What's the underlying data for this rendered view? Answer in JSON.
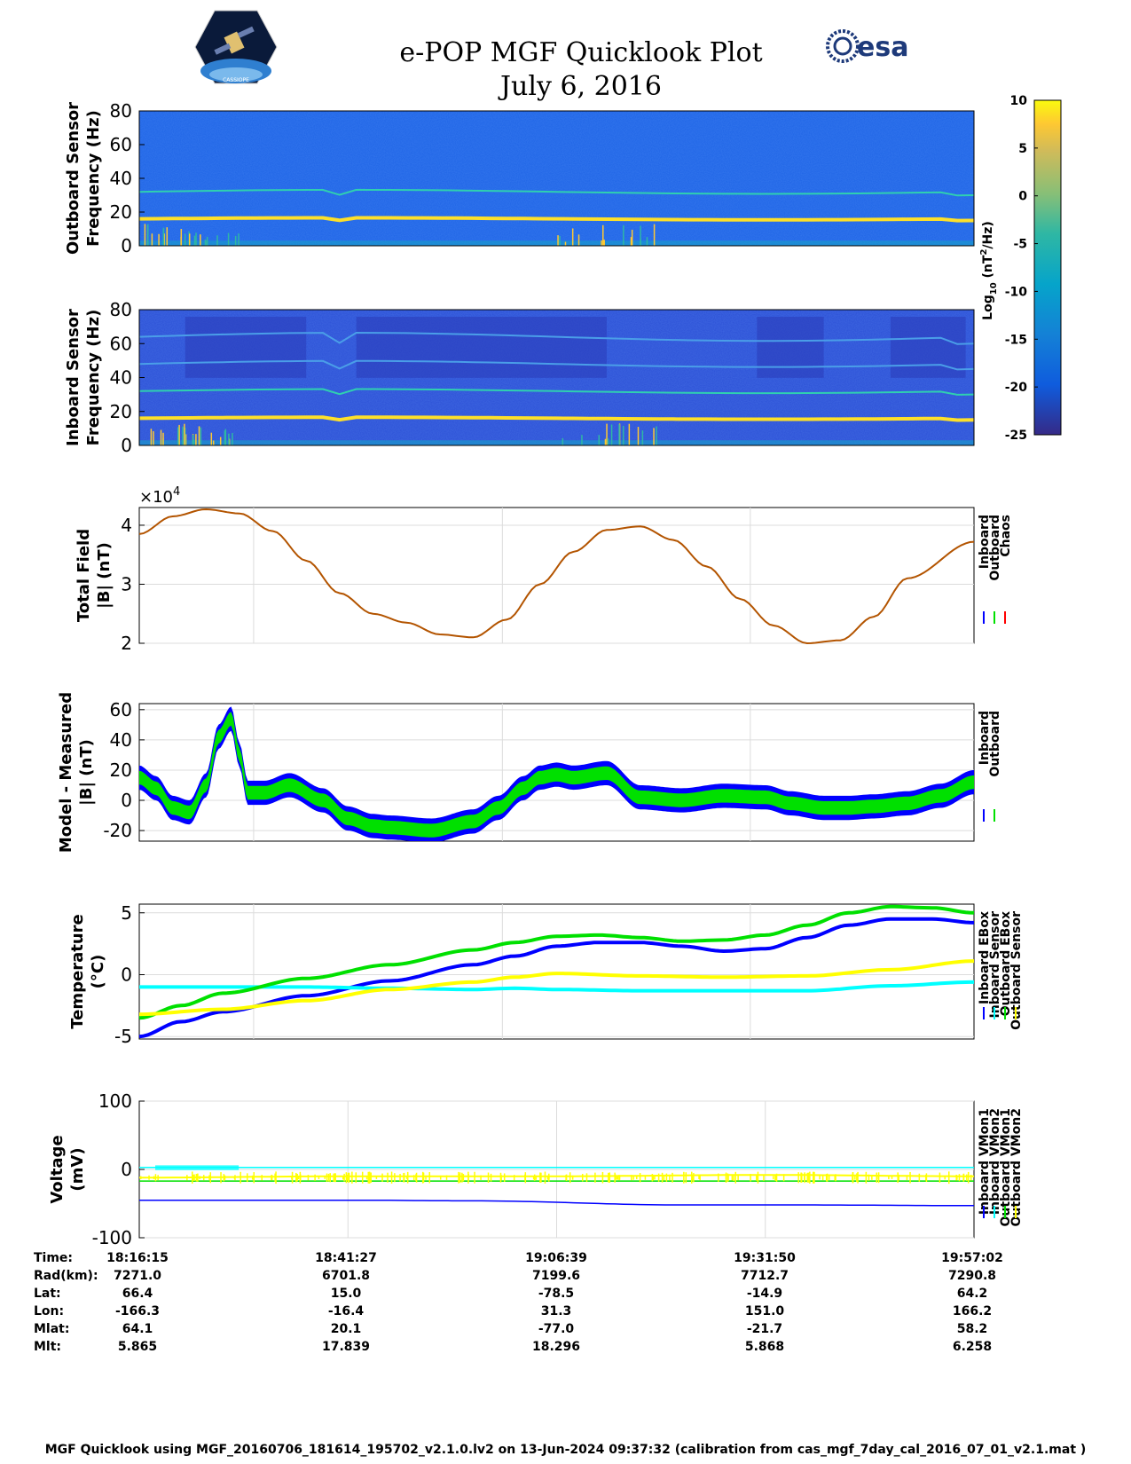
{
  "header": {
    "title": "e-POP MGF Quicklook Plot",
    "date": "July 6, 2016",
    "logo_left": "CASSIOPE",
    "logo_right": "esa"
  },
  "colors": {
    "inboard": "#0000ff",
    "outboard": "#00e000",
    "chaos": "#ff0000",
    "cyan": "#00ffff",
    "yellow": "#ffff00",
    "trace": "#b35400"
  },
  "colorbar": {
    "ticks": [
      "10",
      "5",
      "0",
      "-5",
      "-10",
      "-15",
      "-20",
      "-25"
    ],
    "label_pre": "Log",
    "label_sub": "10",
    "label_mid": " (nT",
    "label_sup": "2",
    "label_post": "/Hz)"
  },
  "chart_data": [
    {
      "type": "heatmap",
      "id": "outboard-spectrogram",
      "ylabel_1": "Outboard Sensor",
      "ylabel_2": "Frequency (Hz)",
      "ylim": [
        0,
        80
      ],
      "yticks": [
        "80",
        "60",
        "40",
        "20",
        "0"
      ],
      "lines_hz": [
        16,
        32
      ]
    },
    {
      "type": "heatmap",
      "id": "inboard-spectrogram",
      "ylabel_1": "Inboard Sensor",
      "ylabel_2": "Frequency (Hz)",
      "ylim": [
        0,
        80
      ],
      "yticks": [
        "80",
        "60",
        "40",
        "20",
        "0"
      ],
      "lines_hz": [
        16,
        32,
        48,
        64
      ]
    },
    {
      "type": "line",
      "id": "total-field",
      "ylabel_1": "Total Field",
      "ylabel_2": "|B| (nT)",
      "exponent_base": "×10",
      "exponent_sup": "4",
      "ylim": [
        2,
        4.3
      ],
      "yticks": [
        "4",
        "3",
        "2"
      ],
      "x_min": [
        0,
        5,
        10,
        15,
        20,
        25,
        30,
        35,
        40,
        45,
        50,
        55,
        60,
        65,
        70,
        75,
        80,
        85,
        90,
        95,
        100
      ],
      "values": [
        3.85,
        4.15,
        4.27,
        4.2,
        3.9,
        3.4,
        2.85,
        2.5,
        2.35,
        2.15,
        2.1,
        2.4,
        3.0,
        3.55,
        3.92,
        3.98,
        3.75,
        3.3,
        2.75,
        2.3,
        2.0,
        2.05,
        2.45,
        3.1,
        3.72
      ],
      "x_values": [
        0,
        4,
        8,
        12,
        16,
        20,
        24,
        28,
        32,
        36,
        40,
        44,
        48,
        52,
        56,
        60,
        64,
        68,
        72,
        76,
        80,
        84,
        88,
        92,
        100
      ],
      "legend": [
        "Inboard",
        "Outboard",
        "Chaos"
      ]
    },
    {
      "type": "line",
      "id": "model-measured",
      "ylabel_1": "Model - Measured",
      "ylabel_2": "|B| (nT)",
      "ylim": [
        -27,
        64
      ],
      "yticks": [
        "60",
        "40",
        "20",
        "0",
        "-20"
      ],
      "x_values": [
        0,
        2,
        4,
        6,
        8,
        9.5,
        11,
        12,
        13,
        15,
        18,
        22,
        25,
        28,
        30,
        35,
        40,
        43,
        46,
        48,
        50,
        52,
        56,
        60,
        65,
        70,
        75,
        78,
        82,
        85,
        88,
        92,
        96,
        100
      ],
      "values": [
        15,
        8,
        -5,
        -8,
        10,
        42,
        54,
        30,
        5,
        5,
        10,
        0,
        -12,
        -17,
        -18,
        -20,
        -14,
        -5,
        8,
        15,
        17,
        15,
        18,
        2,
        0,
        3,
        2,
        -2,
        -5,
        -5,
        -4,
        -2,
        3,
        12
      ],
      "legend": [
        "Inboard",
        "Outboard"
      ]
    },
    {
      "type": "scatter",
      "id": "temperature",
      "ylabel_1": "Temperature",
      "ylabel_2": "(°C)",
      "ylim": [
        -5.2,
        5.7
      ],
      "yticks": [
        "5",
        "0",
        "-5"
      ],
      "series": [
        {
          "name": "Inboard EBox",
          "x": [
            0,
            5,
            10,
            20,
            30,
            40,
            45,
            50,
            55,
            60,
            65,
            70,
            75,
            80,
            85,
            90,
            95,
            100
          ],
          "values": [
            -5.0,
            -3.8,
            -3.0,
            -1.7,
            -0.5,
            0.8,
            1.5,
            2.3,
            2.6,
            2.6,
            2.3,
            1.9,
            2.1,
            3.0,
            4.0,
            4.5,
            4.5,
            4.2
          ]
        },
        {
          "name": "Inboard Sensor",
          "x": [
            0,
            10,
            20,
            30,
            40,
            45,
            50,
            60,
            70,
            80,
            90,
            100
          ],
          "values": [
            -1.0,
            -1.0,
            -1.0,
            -1.1,
            -1.2,
            -1.1,
            -1.2,
            -1.3,
            -1.3,
            -1.3,
            -0.9,
            -0.6
          ]
        },
        {
          "name": "Outboard EBox",
          "x": [
            0,
            5,
            10,
            20,
            30,
            40,
            45,
            50,
            55,
            60,
            65,
            70,
            75,
            80,
            85,
            90,
            95,
            100
          ],
          "values": [
            -3.5,
            -2.5,
            -1.5,
            -0.3,
            0.8,
            2.0,
            2.6,
            3.1,
            3.2,
            3.0,
            2.7,
            2.8,
            3.2,
            4.0,
            5.0,
            5.5,
            5.4,
            5.0
          ]
        },
        {
          "name": "Outboard Sensor",
          "x": [
            0,
            10,
            20,
            30,
            40,
            45,
            50,
            60,
            70,
            80,
            90,
            100
          ],
          "values": [
            -3.2,
            -2.8,
            -2.1,
            -1.2,
            -0.6,
            -0.2,
            0.1,
            -0.1,
            -0.2,
            -0.1,
            0.4,
            1.1
          ]
        }
      ],
      "legend": [
        "Inboard EBox",
        "Inboard Sensor",
        "Outboard EBox",
        "Outboard Sensor"
      ]
    },
    {
      "type": "scatter",
      "id": "voltage",
      "ylabel_1": "Voltage",
      "ylabel_2": "(mV)",
      "ylim": [
        -100,
        100
      ],
      "yticks": [
        "100",
        "0",
        "-100"
      ],
      "series": [
        {
          "name": "Inboard VMon1",
          "x": [
            0,
            25,
            40,
            65,
            80,
            100
          ],
          "values": [
            -45,
            -45,
            -46,
            -52,
            -52,
            -53
          ]
        },
        {
          "name": "Inboard VMon2",
          "x": [
            0,
            100
          ],
          "values": [
            3,
            3
          ]
        },
        {
          "name": "Outboard VMon1",
          "x": [
            0,
            100
          ],
          "values": [
            -17,
            -17
          ]
        },
        {
          "name": "Outboard VMon2",
          "x": [
            0,
            25,
            50,
            75,
            100
          ],
          "values": [
            -12,
            -10,
            -10,
            -8,
            -10
          ]
        }
      ],
      "legend": [
        "Inboard VMon1",
        "Inboard VMon2",
        "Outboard VMon1",
        "Outboard VMon2"
      ]
    }
  ],
  "time_table": {
    "row_labels": [
      "Time:",
      "Rad(km):",
      "Lat:",
      "Lon:",
      "Mlat:",
      "Mlt:"
    ],
    "columns": [
      [
        "18:16:15",
        "7271.0",
        "66.4",
        "-166.3",
        "64.1",
        "5.865"
      ],
      [
        "18:41:27",
        "6701.8",
        "15.0",
        "-16.4",
        "20.1",
        "17.839"
      ],
      [
        "19:06:39",
        "7199.6",
        "-78.5",
        "31.3",
        "-77.0",
        "18.296"
      ],
      [
        "19:31:50",
        "7712.7",
        "-14.9",
        "151.0",
        "-21.7",
        "5.868"
      ],
      [
        "19:57:02",
        "7290.8",
        "64.2",
        "166.2",
        "58.2",
        "6.258"
      ]
    ]
  },
  "footer": "MGF Quicklook using MGF_20160706_181614_195702_v2.1.0.lv2 on 13-Jun-2024 09:37:32 (calibration from cas_mgf_7day_cal_2016_07_01_v2.1.mat )"
}
